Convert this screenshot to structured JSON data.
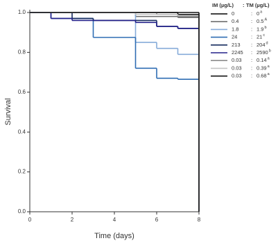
{
  "chart_data": {
    "type": "step",
    "ylabel": "Survival",
    "xlabel": "Time (days)",
    "xlim": [
      0,
      8
    ],
    "xticks": [
      0,
      2,
      4,
      6,
      8
    ],
    "ylim": [
      0,
      1
    ],
    "yticks": [
      {
        "value": 0,
        "label": "0.0"
      },
      {
        "value": 0.2,
        "label": "0.2"
      },
      {
        "value": 0.4,
        "label": "0.4"
      },
      {
        "value": 0.6,
        "label": "0.6"
      },
      {
        "value": 0.8,
        "label": "0.8"
      },
      {
        "value": 1,
        "label": "1.0"
      }
    ],
    "legend_header": {
      "im": "IM (µg/L)",
      "sep": ":",
      "tm": "TM (µg/L)"
    },
    "legend_separator": ":",
    "x": [
      0,
      1,
      2,
      3,
      4,
      5,
      6,
      7
    ],
    "series": [
      {
        "name": "0",
        "tm": "0",
        "letter": "a",
        "color": "#000000",
        "values": [
          1,
          1,
          1,
          1,
          1,
          1,
          1,
          0.99
        ]
      },
      {
        "name": "0.4",
        "tm": "0.5",
        "letter": "A",
        "color": "#6e6e6e",
        "values": [
          1,
          1,
          1,
          1,
          1,
          0.98,
          0.98,
          0.975
        ]
      },
      {
        "name": "1.8",
        "tm": "1.9",
        "letter": "b",
        "color": "#86abd9",
        "values": [
          1,
          1,
          1,
          1,
          1,
          0.85,
          0.82,
          0.79
        ]
      },
      {
        "name": "24",
        "tm": "21",
        "letter": "c",
        "color": "#2f6db3",
        "values": [
          1,
          0.97,
          0.97,
          0.875,
          0.875,
          0.72,
          0.67,
          0.665
        ]
      },
      {
        "name": "213",
        "tm": "204",
        "letter": "d",
        "color": "#152a5e",
        "values": [
          1,
          1,
          0.97,
          0.96,
          0.96,
          0.96,
          0.93,
          0.92
        ]
      },
      {
        "name": "2245",
        "tm": "2590",
        "letter": "b",
        "color": "#23208a",
        "values": [
          1,
          0.97,
          0.96,
          0.96,
          0.96,
          0.95,
          0.93,
          0.92
        ]
      },
      {
        "name": "0.03",
        "tm": "0.14",
        "letter": "a",
        "color": "#8c8c8c",
        "values": [
          1,
          1,
          1,
          1,
          1,
          1,
          0.99,
          0.98
        ]
      },
      {
        "name": "0.03",
        "tm": "0.39",
        "letter": "a",
        "color": "#c4c4c4",
        "values": [
          1,
          1,
          1,
          1,
          1,
          0.99,
          0.99,
          0.985
        ]
      },
      {
        "name": "0.03",
        "tm": "0.68",
        "letter": "a",
        "color": "#111111",
        "values": [
          1,
          1,
          1,
          1,
          1,
          1,
          1,
          1
        ]
      }
    ]
  }
}
